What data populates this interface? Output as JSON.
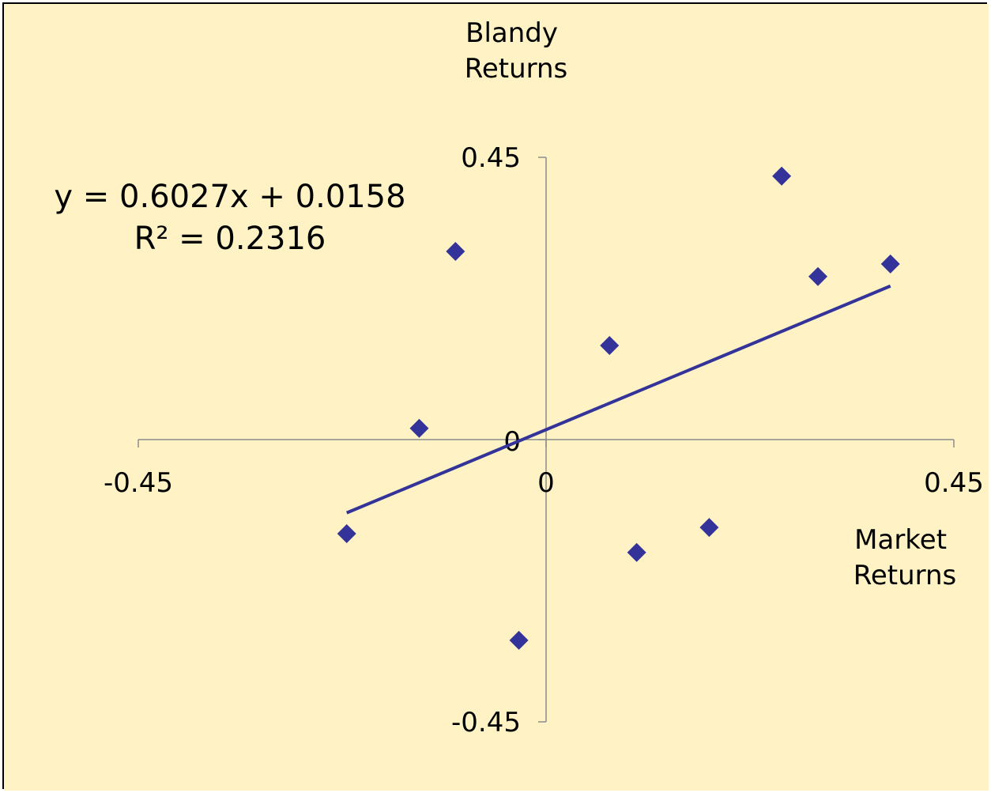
{
  "chart_data": {
    "type": "scatter",
    "title": "",
    "xlabel_lines": [
      "Market",
      "Returns"
    ],
    "ylabel_lines": [
      "Blandy",
      "Returns"
    ],
    "xlim": [
      -0.45,
      0.45
    ],
    "ylim": [
      -0.45,
      0.45
    ],
    "x_ticks": [
      {
        "value": -0.45,
        "label": "-0.45"
      },
      {
        "value": 0,
        "label": "0"
      },
      {
        "value": 0.45,
        "label": "0.45"
      }
    ],
    "y_ticks": [
      {
        "value": 0.45,
        "label": "0.45"
      },
      {
        "value": 0,
        "label": "0"
      },
      {
        "value": -0.45,
        "label": "-0.45"
      }
    ],
    "grid": false,
    "legend": "none",
    "series": [
      {
        "marker": "diamond",
        "color": "#333399",
        "points": [
          {
            "x": -0.22,
            "y": -0.15
          },
          {
            "x": -0.14,
            "y": 0.018
          },
          {
            "x": -0.1,
            "y": 0.3
          },
          {
            "x": -0.03,
            "y": -0.32
          },
          {
            "x": 0.07,
            "y": 0.15
          },
          {
            "x": 0.1,
            "y": -0.18
          },
          {
            "x": 0.18,
            "y": -0.14
          },
          {
            "x": 0.26,
            "y": 0.42
          },
          {
            "x": 0.3,
            "y": 0.26
          },
          {
            "x": 0.38,
            "y": 0.28
          }
        ]
      }
    ],
    "trendline": {
      "type": "linear",
      "slope": 0.6027,
      "intercept": 0.0158,
      "x_range": [
        -0.22,
        0.38
      ],
      "color": "#333399",
      "equation_label": "y = 0.6027x + 0.0158",
      "r2_label": "R² = 0.2316"
    },
    "background_color": "#FFF2C5",
    "axis_color": "#8C8C8C"
  }
}
